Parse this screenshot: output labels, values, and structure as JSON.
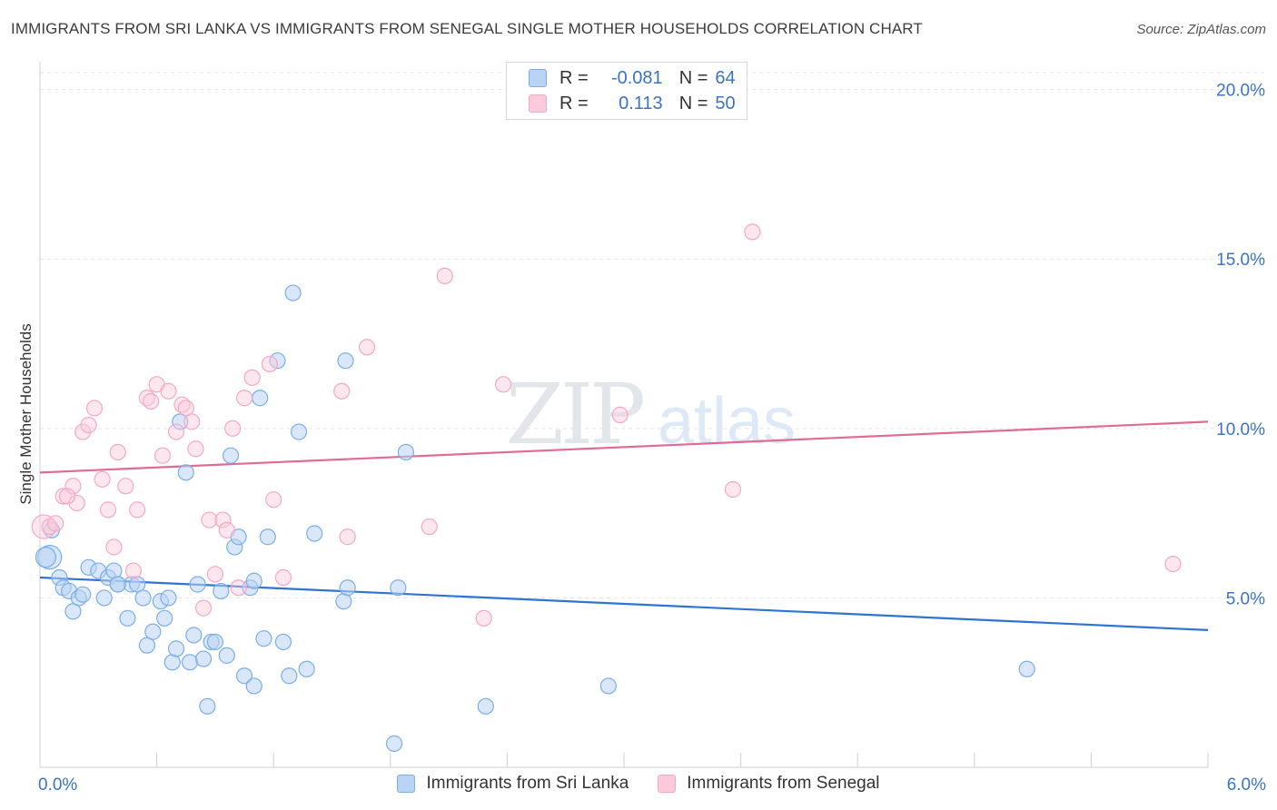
{
  "header": {
    "title": "IMMIGRANTS FROM SRI LANKA VS IMMIGRANTS FROM SENEGAL SINGLE MOTHER HOUSEHOLDS CORRELATION CHART",
    "source": "Source: ZipAtlas.com"
  },
  "watermark": {
    "zip": "ZIP",
    "atlas": "atlas"
  },
  "legend": {
    "r_label": "R =",
    "n_label": "N =",
    "rows": [
      {
        "r": "-0.081",
        "n": "64"
      },
      {
        "r": "0.113",
        "n": "50"
      }
    ]
  },
  "chart_data": {
    "type": "scatter",
    "title": "IMMIGRANTS FROM SRI LANKA VS IMMIGRANTS FROM SENEGAL SINGLE MOTHER HOUSEHOLDS CORRELATION CHART",
    "xlabel": "",
    "ylabel": "Single Mother Households",
    "xlim": [
      0,
      6
    ],
    "ylim": [
      0,
      20.5
    ],
    "x_tick_labels": [
      "0.0%",
      "6.0%"
    ],
    "y_ticks": [
      5,
      10,
      15,
      20
    ],
    "y_tick_labels": [
      "5.0%",
      "10.0%",
      "15.0%",
      "20.0%"
    ],
    "grid": true,
    "legend_position": "top-center",
    "series": [
      {
        "name": "Immigrants from Sri Lanka",
        "color": "#7aaee8",
        "trend_color": "#2f74d0",
        "trend": [
          [
            0,
            5.6
          ],
          [
            6,
            4.05
          ]
        ],
        "points": [
          [
            0.05,
            6.2
          ],
          [
            0.1,
            5.6
          ],
          [
            0.12,
            5.3
          ],
          [
            0.15,
            5.2
          ],
          [
            0.17,
            4.6
          ],
          [
            0.2,
            5.0
          ],
          [
            0.22,
            5.1
          ],
          [
            0.25,
            5.9
          ],
          [
            0.3,
            5.8
          ],
          [
            0.33,
            5.0
          ],
          [
            0.35,
            5.6
          ],
          [
            0.38,
            5.8
          ],
          [
            0.4,
            5.4
          ],
          [
            0.45,
            4.4
          ],
          [
            0.47,
            5.4
          ],
          [
            0.5,
            5.4
          ],
          [
            0.53,
            5.0
          ],
          [
            0.55,
            3.6
          ],
          [
            0.58,
            4.0
          ],
          [
            0.62,
            4.9
          ],
          [
            0.64,
            4.4
          ],
          [
            0.66,
            5.0
          ],
          [
            0.68,
            3.1
          ],
          [
            0.7,
            3.5
          ],
          [
            0.72,
            10.2
          ],
          [
            0.75,
            8.7
          ],
          [
            0.77,
            3.1
          ],
          [
            0.79,
            3.9
          ],
          [
            0.81,
            5.4
          ],
          [
            0.84,
            3.2
          ],
          [
            0.86,
            1.8
          ],
          [
            0.88,
            3.7
          ],
          [
            0.9,
            3.7
          ],
          [
            0.93,
            5.2
          ],
          [
            0.96,
            3.3
          ],
          [
            0.98,
            9.2
          ],
          [
            1.0,
            6.5
          ],
          [
            1.02,
            6.8
          ],
          [
            1.05,
            2.7
          ],
          [
            1.08,
            5.3
          ],
          [
            1.1,
            2.4
          ],
          [
            1.13,
            10.9
          ],
          [
            1.15,
            3.8
          ],
          [
            1.17,
            6.8
          ],
          [
            1.22,
            12.0
          ],
          [
            1.25,
            3.7
          ],
          [
            1.28,
            2.7
          ],
          [
            1.3,
            14.0
          ],
          [
            1.33,
            9.9
          ],
          [
            1.37,
            2.9
          ],
          [
            1.41,
            6.9
          ],
          [
            1.56,
            4.9
          ],
          [
            1.58,
            5.3
          ],
          [
            1.57,
            12.0
          ],
          [
            1.82,
            0.7
          ],
          [
            1.84,
            5.3
          ],
          [
            1.88,
            9.3
          ],
          [
            2.29,
            1.8
          ],
          [
            2.92,
            2.4
          ],
          [
            5.07,
            2.9
          ],
          [
            0.03,
            6.2
          ],
          [
            0.06,
            7.0
          ],
          [
            0.4,
            5.4
          ],
          [
            1.1,
            5.5
          ]
        ]
      },
      {
        "name": "Immigrants from Senegal",
        "color": "#f4a8c4",
        "trend_color": "#e06b95",
        "trend": [
          [
            0,
            8.7
          ],
          [
            6,
            10.2
          ]
        ],
        "points": [
          [
            0.02,
            7.1
          ],
          [
            0.05,
            7.1
          ],
          [
            0.08,
            7.2
          ],
          [
            0.12,
            8.0
          ],
          [
            0.17,
            8.3
          ],
          [
            0.19,
            7.8
          ],
          [
            0.22,
            9.9
          ],
          [
            0.25,
            10.1
          ],
          [
            0.28,
            10.6
          ],
          [
            0.32,
            8.5
          ],
          [
            0.35,
            7.6
          ],
          [
            0.38,
            6.5
          ],
          [
            0.4,
            9.3
          ],
          [
            0.44,
            8.3
          ],
          [
            0.48,
            5.8
          ],
          [
            0.5,
            7.6
          ],
          [
            0.55,
            10.9
          ],
          [
            0.57,
            10.8
          ],
          [
            0.6,
            11.3
          ],
          [
            0.63,
            9.2
          ],
          [
            0.66,
            11.1
          ],
          [
            0.7,
            9.9
          ],
          [
            0.73,
            10.7
          ],
          [
            0.75,
            10.6
          ],
          [
            0.78,
            10.2
          ],
          [
            0.8,
            9.4
          ],
          [
            0.84,
            4.7
          ],
          [
            0.87,
            7.3
          ],
          [
            0.9,
            5.7
          ],
          [
            0.94,
            7.3
          ],
          [
            0.96,
            7.0
          ],
          [
            0.99,
            10.0
          ],
          [
            1.02,
            5.3
          ],
          [
            1.05,
            10.9
          ],
          [
            1.09,
            11.5
          ],
          [
            1.18,
            11.9
          ],
          [
            1.2,
            7.9
          ],
          [
            1.25,
            5.6
          ],
          [
            1.55,
            11.1
          ],
          [
            1.58,
            6.8
          ],
          [
            1.68,
            12.4
          ],
          [
            2.0,
            7.1
          ],
          [
            2.08,
            14.5
          ],
          [
            2.28,
            4.4
          ],
          [
            2.38,
            11.3
          ],
          [
            2.98,
            10.4
          ],
          [
            3.56,
            8.2
          ],
          [
            3.66,
            15.8
          ],
          [
            5.82,
            6.0
          ],
          [
            0.14,
            8.0
          ]
        ]
      }
    ]
  }
}
